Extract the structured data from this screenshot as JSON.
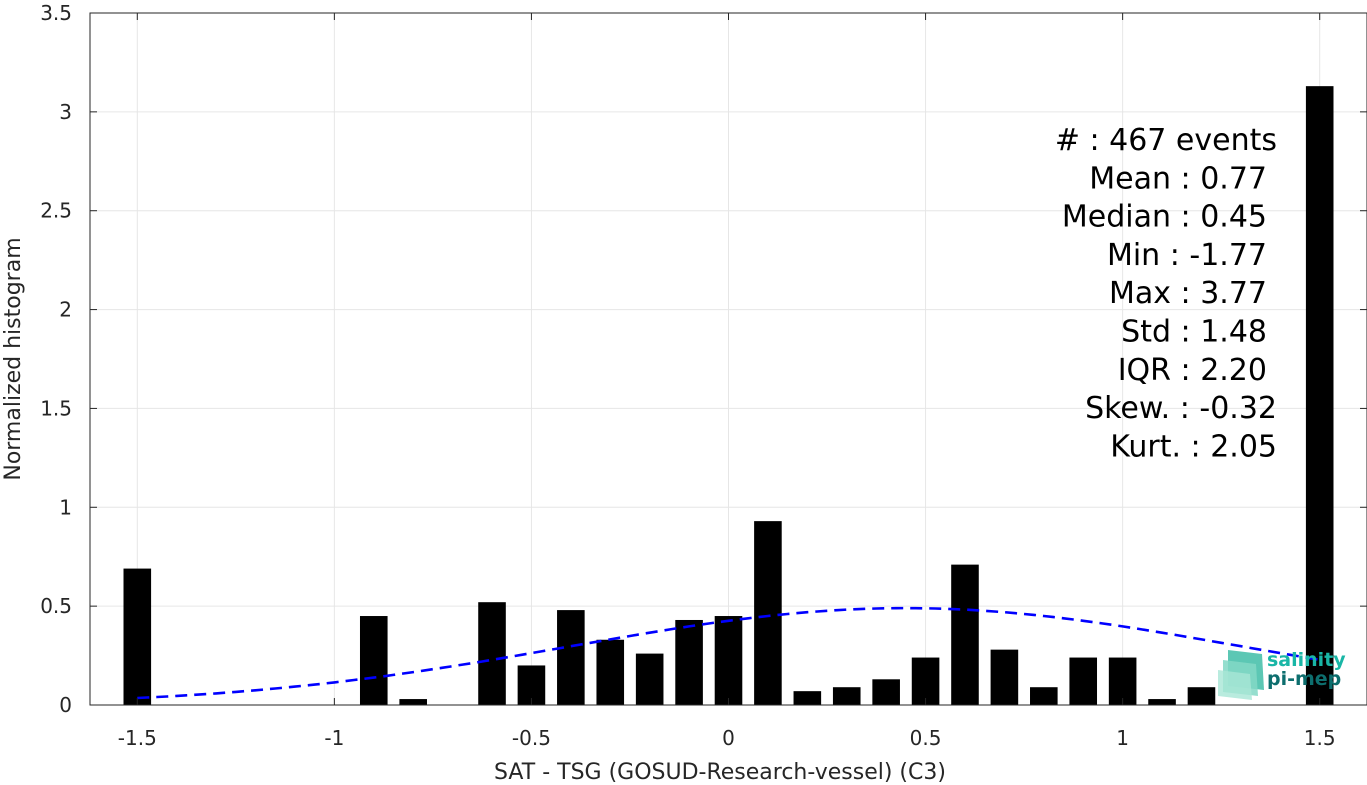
{
  "chart_data": {
    "type": "bar",
    "xlabel": "SAT - TSG (GOSUD-Research-vessel) (C3)",
    "ylabel": "Normalized histogram",
    "xlim": [
      -1.62,
      1.62
    ],
    "ylim": [
      0,
      3.5
    ],
    "xticks": [
      -1.5,
      -1,
      -0.5,
      0,
      0.5,
      1,
      1.5
    ],
    "xtick_labels": [
      "-1.5",
      "-1",
      "-0.5",
      "0",
      "0.5",
      "1",
      "1.5"
    ],
    "yticks": [
      0,
      0.5,
      1,
      1.5,
      2,
      2.5,
      3,
      3.5
    ],
    "ytick_labels": [
      "0",
      "0.5",
      "1",
      "1.5",
      "2",
      "2.5",
      "3",
      "3.5"
    ],
    "grid": true,
    "bar_color": "#000000",
    "bar_width": 0.07,
    "bars": [
      {
        "x": -1.5,
        "y": 0.69
      },
      {
        "x": -0.9,
        "y": 0.45
      },
      {
        "x": -0.8,
        "y": 0.03
      },
      {
        "x": -0.6,
        "y": 0.52
      },
      {
        "x": -0.5,
        "y": 0.2
      },
      {
        "x": -0.4,
        "y": 0.48
      },
      {
        "x": -0.3,
        "y": 0.33
      },
      {
        "x": -0.2,
        "y": 0.26
      },
      {
        "x": -0.1,
        "y": 0.43
      },
      {
        "x": 0.0,
        "y": 0.45
      },
      {
        "x": 0.1,
        "y": 0.93
      },
      {
        "x": 0.2,
        "y": 0.07
      },
      {
        "x": 0.3,
        "y": 0.09
      },
      {
        "x": 0.4,
        "y": 0.13
      },
      {
        "x": 0.5,
        "y": 0.24
      },
      {
        "x": 0.6,
        "y": 0.71
      },
      {
        "x": 0.7,
        "y": 0.28
      },
      {
        "x": 0.8,
        "y": 0.09
      },
      {
        "x": 0.9,
        "y": 0.24
      },
      {
        "x": 1.0,
        "y": 0.24
      },
      {
        "x": 1.1,
        "y": 0.03
      },
      {
        "x": 1.2,
        "y": 0.09
      },
      {
        "x": 1.5,
        "y": 3.13
      }
    ],
    "fit_curve": {
      "style": "dashed",
      "color": "#0000ff",
      "mean": 0.45,
      "std": 0.85,
      "amplitude": 0.49,
      "x_range": [
        -1.5,
        1.5
      ]
    },
    "stats": [
      "#  : 467 events",
      "Mean : 0.77",
      "Median : 0.45",
      "Min : -1.77",
      "Max : 3.77",
      "Std : 1.48",
      "IQR : 2.20",
      "Skew. : -0.32",
      "Kurt. : 2.05"
    ]
  },
  "logo": {
    "line1": "salinity",
    "line2": "pi-mep",
    "color1": "#19b6a6",
    "color2": "#0d6e6e"
  }
}
